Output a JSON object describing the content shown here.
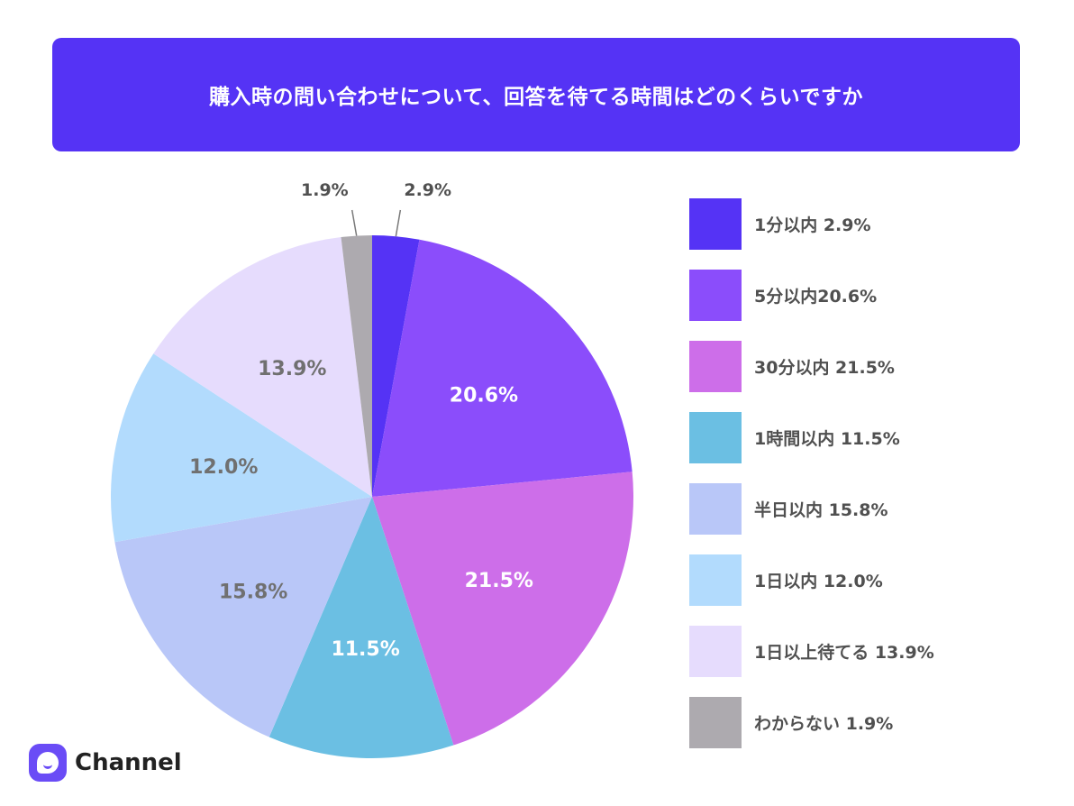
{
  "header": {
    "title": "購入時の問い合わせについて、回答を待てる時間はどのくらいですか"
  },
  "chart_data": {
    "type": "pie",
    "title": "購入時の問い合わせについて、回答を待てる時間はどのくらいですか",
    "slices": [
      {
        "name": "1分以内",
        "value": 2.9,
        "label": "",
        "legend": "1分以内 2.9%",
        "color": "#5533f5",
        "label_color": "#ffffff",
        "outside_label": "2.9%"
      },
      {
        "name": "5分以内",
        "value": 20.6,
        "label": "20.6%",
        "legend": "5分以内20.6%",
        "color": "#8b4dfb",
        "label_color": "#ffffff"
      },
      {
        "name": "30分以内",
        "value": 21.5,
        "label": "21.5%",
        "legend": "30分以内 21.5%",
        "color": "#cd6ee9",
        "label_color": "#ffffff"
      },
      {
        "name": "1時間以内",
        "value": 11.5,
        "label": "11.5%",
        "legend": "1時間以内 11.5%",
        "color": "#6bbfe3",
        "label_color": "#ffffff"
      },
      {
        "name": "半日以内",
        "value": 15.8,
        "label": "15.8%",
        "legend": "半日以内 15.8%",
        "color": "#b9c7f8",
        "label_color": "#707070"
      },
      {
        "name": "1日以内",
        "value": 12.0,
        "label": "12.0%",
        "legend": "1日以内 12.0%",
        "color": "#b2dbfd",
        "label_color": "#707070"
      },
      {
        "name": "1日以上待てる",
        "value": 13.9,
        "label": "13.9%",
        "legend": "1日以上待てる 13.9%",
        "color": "#e6dcfd",
        "label_color": "#707070"
      },
      {
        "name": "わからない",
        "value": 1.9,
        "label": "",
        "legend": "わからない 1.9%",
        "color": "#adaaaf",
        "label_color": "#ffffff",
        "outside_label": "1.9%"
      }
    ],
    "legend_position": "right"
  },
  "brand": {
    "name": "Channel",
    "logo_icon": "chat-bubble-icon",
    "color": "#6a4cf6"
  }
}
